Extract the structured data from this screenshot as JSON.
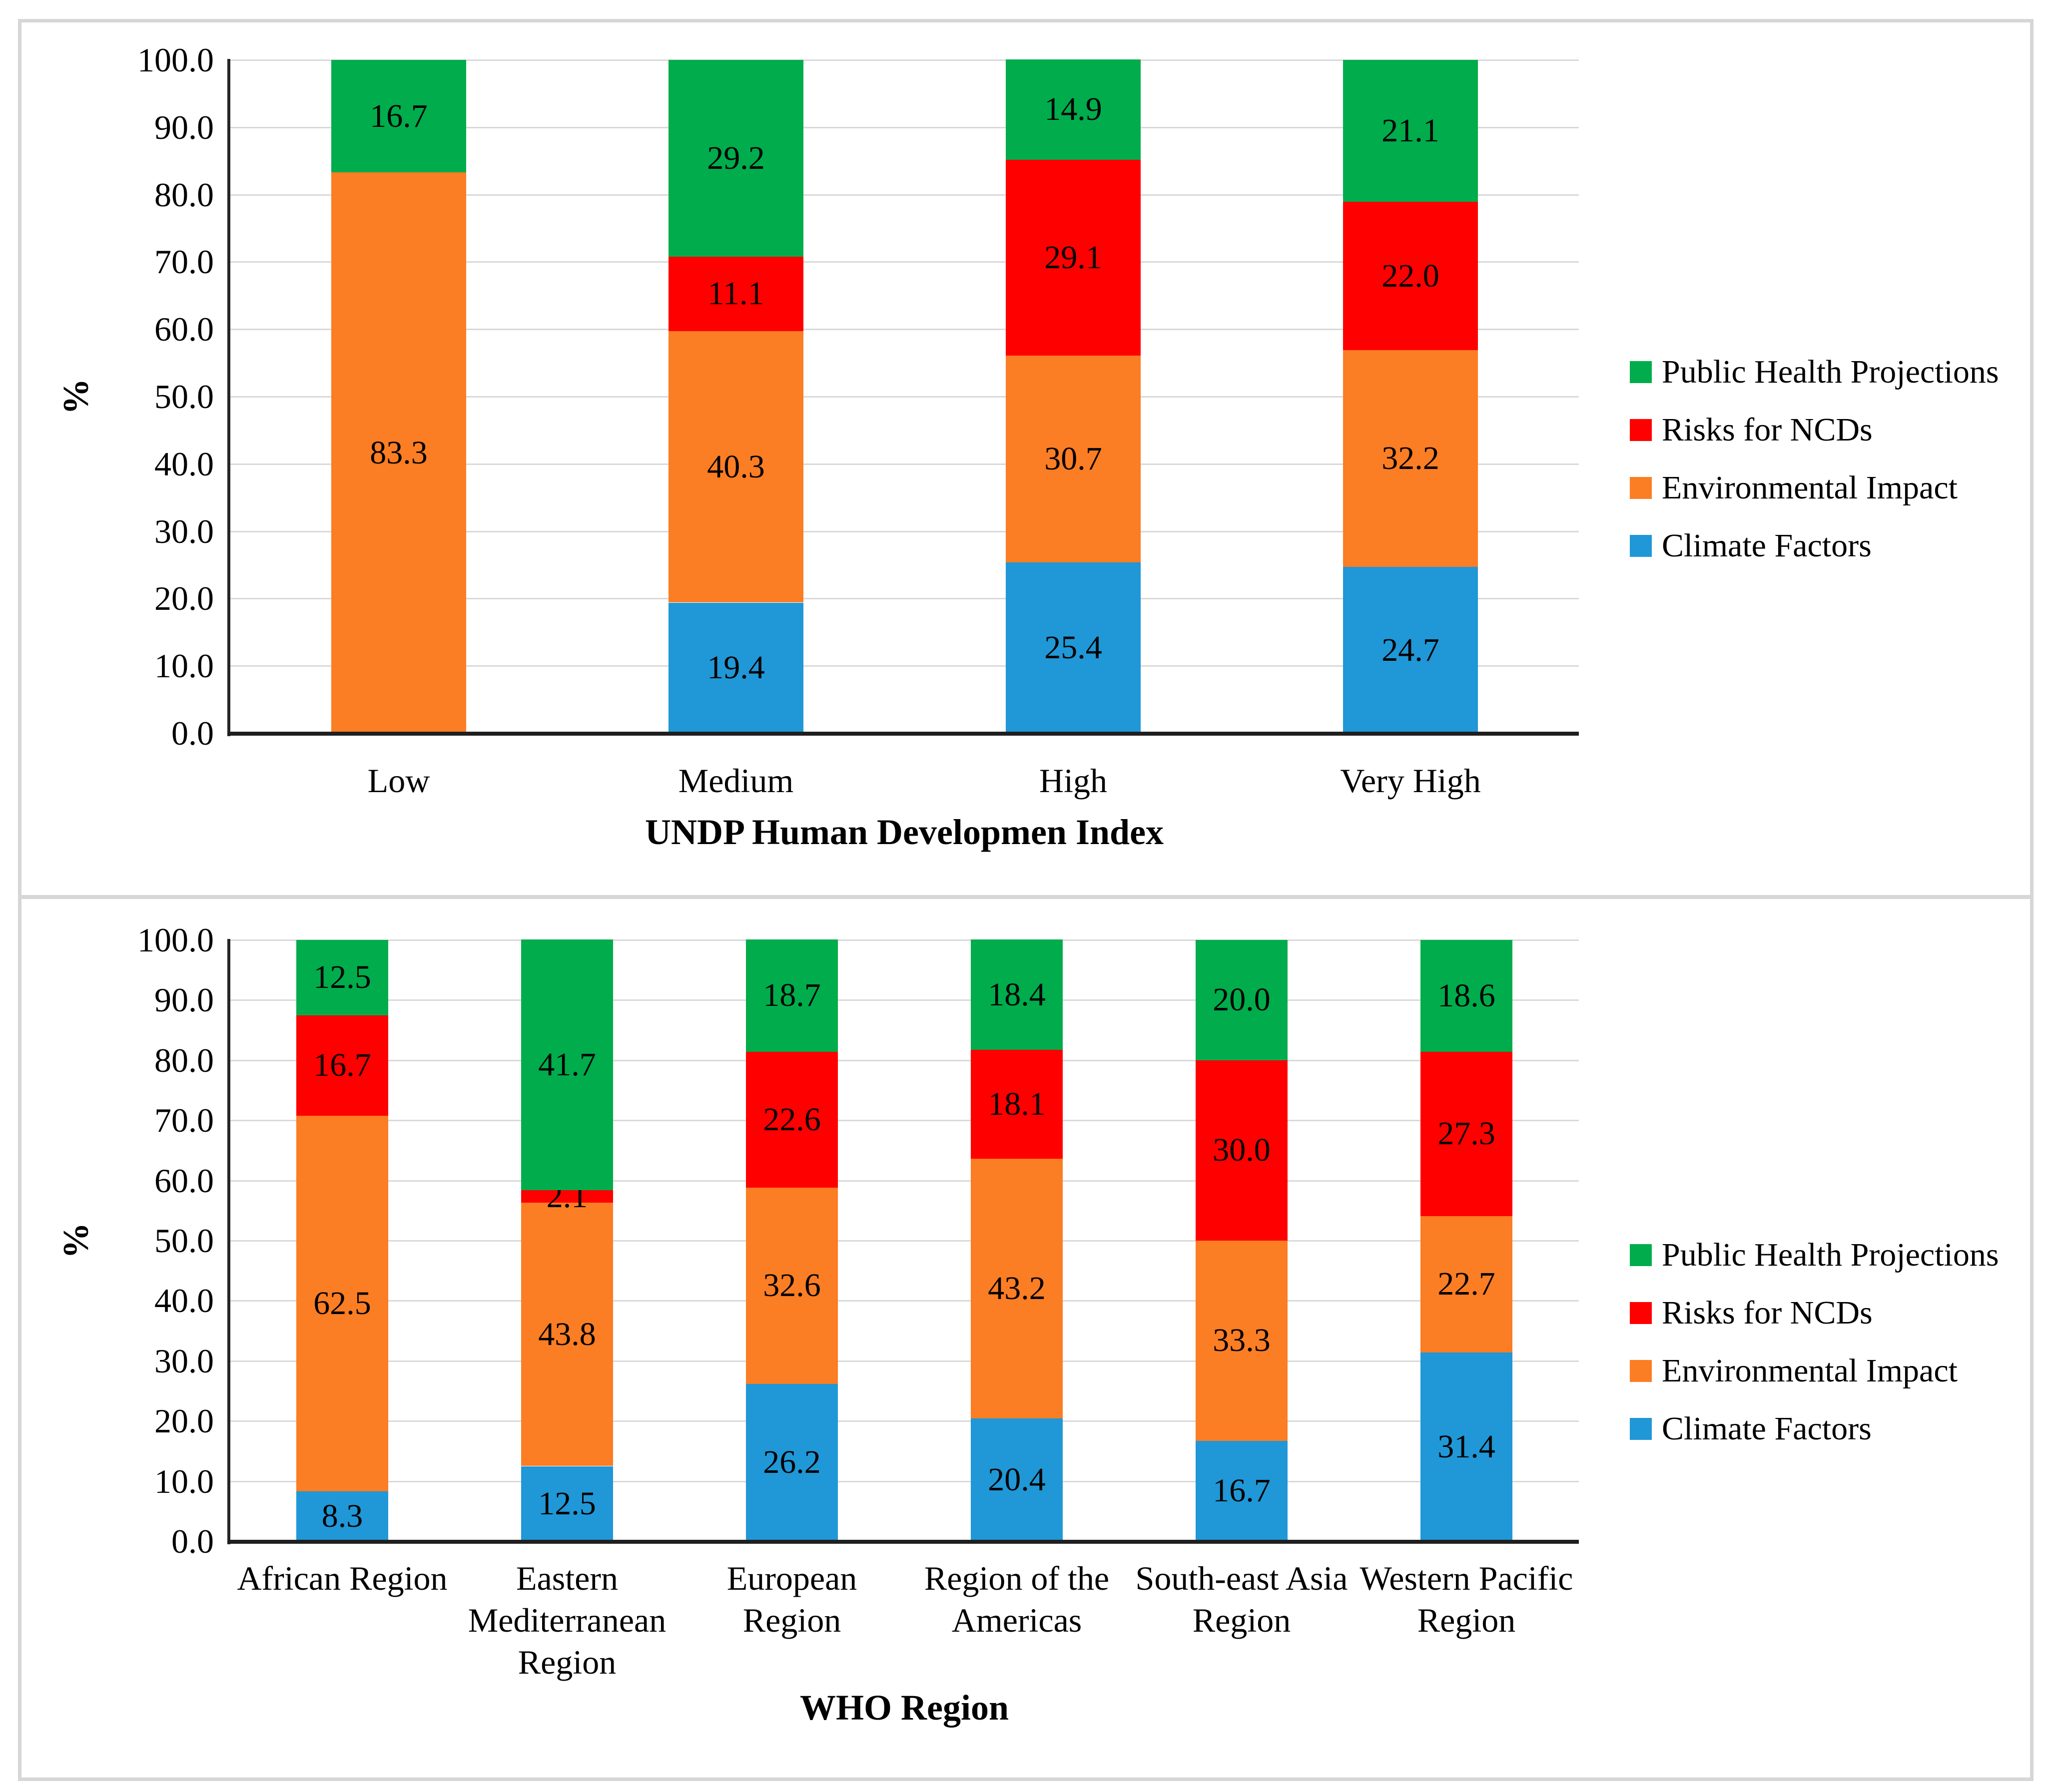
{
  "figure": {
    "background": "#ffffff",
    "border_color": "#d6d6d6",
    "text_color": "#000000",
    "gridline_color": "#d9d9d9",
    "axis_color": "#262626"
  },
  "chart_data": [
    {
      "type": "bar",
      "stacked": true,
      "title": "",
      "xlabel": "UNDP Human Developmen Index",
      "ylabel": "%",
      "ylim": [
        0,
        100
      ],
      "grid": true,
      "legend_position": "right",
      "ytick_labels": [
        "100.0",
        "90.0",
        "80.0",
        "70.0",
        "60.0",
        "50.0",
        "40.0",
        "30.0",
        "20.0",
        "10.0",
        "0.0"
      ],
      "categories": [
        "Low",
        "Medium",
        "High",
        "Very High"
      ],
      "category_lines": [
        [
          "Low"
        ],
        [
          "Medium"
        ],
        [
          "High"
        ],
        [
          "Very High"
        ]
      ],
      "series": [
        {
          "name": "Climate Factors",
          "color": "#2097d6",
          "values": [
            0,
            19.4,
            25.4,
            24.7
          ]
        },
        {
          "name": "Environmental Impact",
          "color": "#fb7d24",
          "values": [
            83.3,
            40.3,
            30.7,
            32.2
          ]
        },
        {
          "name": "Risks for NCDs",
          "color": "#ff0000",
          "values": [
            0,
            11.1,
            29.1,
            22.0
          ]
        },
        {
          "name": "Public Health Projections",
          "color": "#00ac4b",
          "values": [
            16.7,
            29.2,
            14.9,
            21.1
          ]
        }
      ],
      "legend_order": [
        3,
        2,
        1,
        0
      ]
    },
    {
      "type": "bar",
      "stacked": true,
      "title": "",
      "xlabel": "WHO Region",
      "ylabel": "%",
      "ylim": [
        0,
        100
      ],
      "grid": true,
      "legend_position": "right",
      "ytick_labels": [
        "100.0",
        "90.0",
        "80.0",
        "70.0",
        "60.0",
        "50.0",
        "40.0",
        "30.0",
        "20.0",
        "10.0",
        "0.0"
      ],
      "categories": [
        "African Region",
        "Eastern Mediterranean Region",
        "European Region",
        "Region of the Americas",
        "South-east Asia Region",
        "Western Pacific Region"
      ],
      "category_lines": [
        [
          "African Region"
        ],
        [
          "Eastern",
          "Mediterranean",
          "Region"
        ],
        [
          "European",
          "Region"
        ],
        [
          "Region of the",
          "Americas"
        ],
        [
          "South-east Asia",
          "Region"
        ],
        [
          "Western Pacific",
          "Region"
        ]
      ],
      "series": [
        {
          "name": "Climate Factors",
          "color": "#2097d6",
          "values": [
            8.3,
            12.5,
            26.2,
            20.4,
            16.7,
            31.4
          ]
        },
        {
          "name": "Environmental Impact",
          "color": "#fb7d24",
          "values": [
            62.5,
            43.8,
            32.6,
            43.2,
            33.3,
            22.7
          ]
        },
        {
          "name": "Risks for NCDs",
          "color": "#ff0000",
          "values": [
            16.7,
            2.1,
            22.6,
            18.1,
            30.0,
            27.3
          ]
        },
        {
          "name": "Public Health Projections",
          "color": "#00ac4b",
          "values": [
            12.5,
            41.7,
            18.7,
            18.4,
            20.0,
            18.6
          ]
        }
      ],
      "legend_order": [
        3,
        2,
        1,
        0
      ]
    }
  ]
}
